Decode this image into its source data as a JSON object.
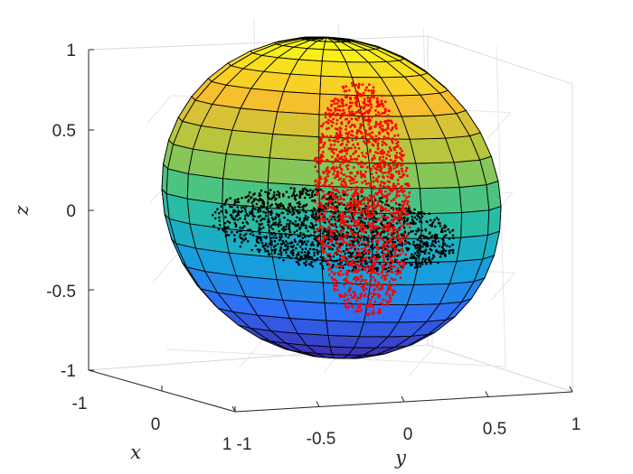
{
  "chart_data": {
    "type": "scatter",
    "title": "",
    "surface": {
      "shape": "unit sphere",
      "colormap": "parula",
      "color_by": "z",
      "edge_color": "#000000",
      "colors": [
        "#3e26a8",
        "#2f6cf7",
        "#14a7d8",
        "#2fc395",
        "#acc740",
        "#f9bf2c",
        "#f9fb15"
      ]
    },
    "axes": {
      "xlabel": "x",
      "ylabel": "y",
      "zlabel": "z",
      "xlim": [
        -1,
        1
      ],
      "ylim": [
        -1,
        1
      ],
      "zlim": [
        -1,
        1
      ],
      "x_ticks": [
        "-1",
        "0",
        "1"
      ],
      "y_ticks": [
        "-1",
        "-0.5",
        "0",
        "0.5",
        "1"
      ],
      "z_ticks": [
        "-1",
        "-0.5",
        "0",
        "0.5",
        "1"
      ],
      "grid": true,
      "box": "3-D axes box"
    },
    "series": [
      {
        "color": "#000000",
        "marker": "point",
        "description_values": {
          "x": [
            -0.2,
            0.2
          ],
          "y": [
            -0.75,
            0.75
          ],
          "z": [
            -0.45,
            0.05
          ]
        }
      },
      {
        "color": "#ff0000",
        "marker": "point",
        "description_values": {
          "x": [
            -0.2,
            0.2
          ],
          "y": [
            0.0,
            0.35
          ],
          "z": [
            -0.75,
            0.75
          ]
        }
      }
    ]
  }
}
